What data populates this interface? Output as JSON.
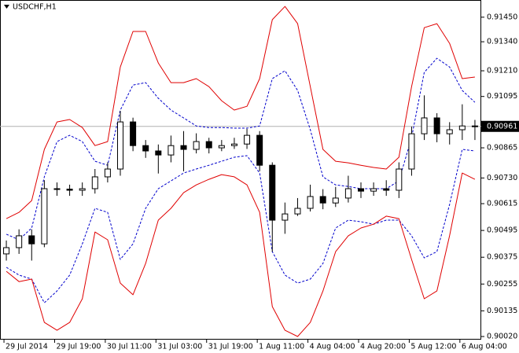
{
  "chart_data": {
    "type": "candlestick",
    "title": "USDCHF,H1",
    "categories": [
      "29 Jul 2014",
      null,
      null,
      null,
      "29 Jul 19:00",
      null,
      null,
      null,
      "30 Jul 11:00",
      null,
      null,
      null,
      "31 Jul 03:00",
      null,
      null,
      null,
      "31 Jul 19:00",
      null,
      null,
      null,
      "1 Aug 11:00",
      null,
      null,
      null,
      "4 Aug 04:00",
      null,
      null,
      null,
      "4 Aug 20:00",
      null,
      null,
      null,
      "5 Aug 12:00",
      null,
      null,
      null,
      "6 Aug 04:00",
      null
    ],
    "open": [
      0.9039,
      0.90418,
      0.90471,
      0.90435,
      0.90682,
      0.9068,
      0.90675,
      0.90682,
      0.90735,
      0.9077,
      0.90981,
      0.90875,
      0.90851,
      0.90833,
      0.90875,
      0.90858,
      0.90893,
      0.90865,
      0.90875,
      0.90882,
      0.90921,
      0.90787,
      0.90541,
      0.90569,
      0.90594,
      0.90647,
      0.90618,
      0.9064,
      0.90682,
      0.90671,
      0.90682,
      0.90675,
      0.9077,
      0.90928,
      0.90999,
      0.90928,
      0.90946,
      0.90963
    ],
    "high": [
      0.9045,
      0.905,
      0.905,
      0.9072,
      0.9071,
      0.907,
      0.9071,
      0.9077,
      0.908,
      0.9103,
      0.91,
      0.909,
      0.9088,
      0.9092,
      0.9094,
      0.9093,
      0.9091,
      0.909,
      0.9091,
      0.9095,
      0.9094,
      0.908,
      0.9062,
      0.9064,
      0.907,
      0.9068,
      0.9069,
      0.9074,
      0.9071,
      0.9071,
      0.9072,
      0.908,
      0.9096,
      0.911,
      0.9102,
      0.9098,
      0.9106,
      0.9099
    ],
    "low": [
      0.9036,
      0.9039,
      0.9036,
      0.9042,
      0.9065,
      0.9065,
      0.9065,
      0.9066,
      0.9071,
      0.9074,
      0.9085,
      0.9082,
      0.9075,
      0.908,
      0.9076,
      0.9084,
      0.9084,
      0.9085,
      0.9086,
      0.9086,
      0.9076,
      0.904,
      0.9048,
      0.9056,
      0.9058,
      0.9059,
      0.906,
      0.9062,
      0.9064,
      0.9065,
      0.9065,
      0.9064,
      0.9074,
      0.909,
      0.9089,
      0.9088,
      0.909,
      0.909
    ],
    "close": [
      0.90418,
      0.90471,
      0.90435,
      0.90682,
      0.9068,
      0.90675,
      0.90682,
      0.90735,
      0.9077,
      0.90981,
      0.90875,
      0.90851,
      0.90833,
      0.90875,
      0.90858,
      0.90893,
      0.90865,
      0.90875,
      0.90882,
      0.90921,
      0.90787,
      0.90541,
      0.90569,
      0.90594,
      0.90647,
      0.90618,
      0.9064,
      0.90682,
      0.90671,
      0.90682,
      0.90675,
      0.9077,
      0.90928,
      0.90999,
      0.90928,
      0.90946,
      0.90963,
      0.90961
    ],
    "up_color": "#ffffff",
    "down_color": "#000000",
    "series": [
      {
        "color": "#e00000",
        "dash": false,
        "values": [
          0.90548,
          0.90576,
          0.90629,
          0.90858,
          0.90981,
          0.90992,
          0.90956,
          0.90875,
          0.90893,
          0.91227,
          0.91386,
          0.91386,
          0.91245,
          0.91157,
          0.91157,
          0.91175,
          0.91139,
          0.91076,
          0.91034,
          0.91051,
          0.91175,
          0.91439,
          0.91498,
          0.91421,
          0.91139,
          0.90858,
          0.90805,
          0.90798,
          0.90787,
          0.90777,
          0.9077,
          0.90823,
          0.91139,
          0.91403,
          0.91421,
          0.91333,
          0.91175,
          0.91182
        ]
      },
      {
        "color": "#0000cc",
        "dash": true,
        "values": [
          0.90478,
          0.90453,
          0.90506,
          0.90735,
          0.90893,
          0.90921,
          0.90893,
          0.90805,
          0.90787,
          0.91034,
          0.91146,
          0.91157,
          0.91087,
          0.91034,
          0.90999,
          0.90963,
          0.90956,
          0.90956,
          0.90953,
          0.90953,
          0.90963,
          0.91175,
          0.9121,
          0.91122,
          0.90946,
          0.90735,
          0.90699,
          0.90692,
          0.90682,
          0.90682,
          0.90682,
          0.90717,
          0.90911,
          0.91203,
          0.91266,
          0.91227,
          0.91122,
          0.91069
        ]
      },
      {
        "color": "#0000cc",
        "dash": true,
        "values": [
          0.9033,
          0.90295,
          0.90277,
          0.90171,
          0.90224,
          0.90295,
          0.90435,
          0.90594,
          0.90576,
          0.90365,
          0.90435,
          0.90594,
          0.90682,
          0.90717,
          0.90752,
          0.9077,
          0.90787,
          0.90805,
          0.90823,
          0.9083,
          0.90752,
          0.904,
          0.90295,
          0.90259,
          0.90277,
          0.90347,
          0.90506,
          0.90541,
          0.90534,
          0.90523,
          0.90541,
          0.90541,
          0.90471,
          0.90372,
          0.904,
          0.90611,
          0.90858,
          0.90851
        ]
      },
      {
        "color": "#e00000",
        "dash": false,
        "values": [
          0.90312,
          0.90266,
          0.90277,
          0.90083,
          0.90048,
          0.90083,
          0.90189,
          0.90488,
          0.90453,
          0.90259,
          0.90207,
          0.90347,
          0.90541,
          0.90594,
          0.90664,
          0.90699,
          0.90724,
          0.90745,
          0.90735,
          0.90699,
          0.90576,
          0.90154,
          0.90048,
          0.9002,
          0.90083,
          0.90224,
          0.904,
          0.90471,
          0.90506,
          0.90523,
          0.90559,
          0.90548,
          0.90365,
          0.90189,
          0.90224,
          0.90471,
          0.90752,
          0.90724
        ]
      }
    ],
    "last_price": 0.90961,
    "ylim": [
      0.90006,
      0.91527
    ],
    "yticks": [
      {
        "value": 0.9145,
        "label": "0.91450"
      },
      {
        "value": 0.9134,
        "label": "0.91340"
      },
      {
        "value": 0.9121,
        "label": "0.91210"
      },
      0.91095,
      0.90865,
      {
        "value": 0.9073,
        "label": "0.90730"
      },
      0.90615,
      0.90495,
      0.90375,
      0.90255,
      0.90135,
      {
        "value": 0.9002,
        "label": "0.90020"
      }
    ]
  }
}
